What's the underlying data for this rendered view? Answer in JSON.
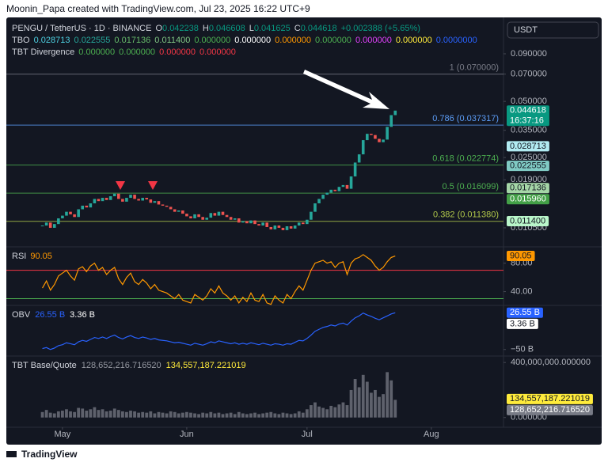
{
  "header": {
    "title": "Moonin_Papa created with TradingView.com, Jul 23, 2025 16:22 UTC+9"
  },
  "footer": {
    "brand": "TradingView"
  },
  "currency_button": "USDT",
  "chart_data": [
    {
      "type": "candlestick",
      "legend": {
        "symbol": "PENGU / TetherUS · 1D · BINANCE",
        "ohlc": [
          {
            "label": "O",
            "value": "0.042238"
          },
          {
            "label": "H",
            "value": "0.046608"
          },
          {
            "label": "L",
            "value": "0.041625"
          },
          {
            "label": "C",
            "value": "0.044618"
          }
        ],
        "change": "+0.002388 (+5.65%)",
        "color": "#089981",
        "rows": [
          {
            "name": "TBO",
            "values": [
              {
                "text": "0.028713",
                "color": "#4dd0e1"
              },
              {
                "text": "0.022555",
                "color": "#26a69a"
              },
              {
                "text": "0.017136",
                "color": "#66bb6a"
              },
              {
                "text": "0.011400",
                "color": "#81c784"
              },
              {
                "text": "0.000000",
                "color": "#4caf50"
              },
              {
                "text": "0.000000",
                "color": "#ffffff"
              },
              {
                "text": "0.000000",
                "color": "#ff9800"
              },
              {
                "text": "0.000000",
                "color": "#4caf50"
              },
              {
                "text": "0.000000",
                "color": "#e040fb"
              },
              {
                "text": "0.000000",
                "color": "#ffeb3b"
              },
              {
                "text": "0.0000000",
                "color": "#2962ff"
              }
            ]
          },
          {
            "name": "TBT Divergence",
            "values": [
              {
                "text": "0.000000",
                "color": "#4caf50"
              },
              {
                "text": "0.000000",
                "color": "#4caf50"
              },
              {
                "text": "0.000000",
                "color": "#f23645"
              },
              {
                "text": "0.000000",
                "color": "#f23645"
              }
            ]
          }
        ]
      },
      "closes": [
        0.0108,
        0.0112,
        0.0105,
        0.011,
        0.0118,
        0.0122,
        0.0128,
        0.0124,
        0.012,
        0.0132,
        0.0138,
        0.0135,
        0.0142,
        0.015,
        0.0146,
        0.0152,
        0.0148,
        0.0155,
        0.016,
        0.015,
        0.0145,
        0.0152,
        0.0158,
        0.015,
        0.0147,
        0.0152,
        0.0149,
        0.0143,
        0.0146,
        0.014,
        0.0138,
        0.0136,
        0.0132,
        0.0128,
        0.013,
        0.0125,
        0.0121,
        0.0118,
        0.0124,
        0.012,
        0.0116,
        0.0119,
        0.0126,
        0.0122,
        0.0128,
        0.0123,
        0.012,
        0.0116,
        0.0118,
        0.0112,
        0.0114,
        0.0111,
        0.0115,
        0.011,
        0.0108,
        0.0112,
        0.0106,
        0.0103,
        0.0108,
        0.0105,
        0.0102,
        0.0107,
        0.0104,
        0.0108,
        0.0112,
        0.011,
        0.0116,
        0.0128,
        0.0142,
        0.015,
        0.0158,
        0.0162,
        0.0168,
        0.0165,
        0.0174,
        0.0178,
        0.017,
        0.0198,
        0.0235,
        0.026,
        0.031,
        0.0335,
        0.033,
        0.0315,
        0.0302,
        0.0312,
        0.0365,
        0.0422,
        0.044618
      ],
      "up_color": "#26a69a",
      "down_color": "#ef5350",
      "xlim": [
        -9,
        115
      ],
      "xticks": [
        {
          "value": 5,
          "label": "May"
        },
        {
          "value": 36,
          "label": "Jun"
        },
        {
          "value": 66,
          "label": "Jul"
        },
        {
          "value": 97,
          "label": "Aug"
        }
      ],
      "log_scale": true,
      "ylim": [
        0.0083,
        0.141
      ],
      "yticks": [
        {
          "value": 0.09,
          "label": "0.090000"
        },
        {
          "value": 0.07,
          "label": "0.070000"
        },
        {
          "value": 0.05,
          "label": "0.050000"
        },
        {
          "value": 0.035,
          "label": "0.035000"
        },
        {
          "value": 0.025,
          "label": "0.025000"
        },
        {
          "value": 0.019,
          "label": "0.019000"
        },
        {
          "value": 0.0105,
          "label": "0.010500"
        }
      ],
      "fib_levels": [
        {
          "value": 0.07,
          "label": "1 (0.070000)",
          "color": "#787b86"
        },
        {
          "value": 0.037317,
          "label": "0.786 (0.037317)",
          "color": "#5b9cf6"
        },
        {
          "value": 0.022774,
          "label": "0.618 (0.022774)",
          "color": "#4caf50"
        },
        {
          "value": 0.016099,
          "label": "0.5 (0.016099)",
          "color": "#4caf50"
        },
        {
          "value": 0.01138,
          "label": "0.382 (0.011380)",
          "color": "#b2c94a"
        }
      ],
      "badges": [
        {
          "value": 0.044618,
          "label": "0.044618",
          "sub": "16:37:16",
          "bg": "#089981",
          "fg": "#ffffff"
        },
        {
          "value": 0.028713,
          "label": "0.028713",
          "bg": "#b2ebf2",
          "fg": "#131722"
        },
        {
          "value": 0.022555,
          "label": "0.022555",
          "bg": "#80cbc4",
          "fg": "#131722"
        },
        {
          "value": 0.017136,
          "label": "0.017136",
          "bg": "#a5d6a7",
          "fg": "#131722"
        },
        {
          "value": 0.01596,
          "label": "0.015960",
          "bg": "#43a047",
          "fg": "#ffffff"
        },
        {
          "value": 0.0114,
          "label": "0.011400",
          "bg": "#b9f6ca",
          "fg": "#131722"
        }
      ]
    },
    {
      "type": "line",
      "title": "RSI",
      "title_value": "90.05",
      "color": "#ff9800",
      "values": [
        45,
        55,
        42,
        50,
        62,
        66,
        70,
        62,
        56,
        72,
        75,
        68,
        76,
        80,
        70,
        74,
        64,
        70,
        74,
        58,
        50,
        60,
        66,
        54,
        50,
        57,
        52,
        44,
        50,
        42,
        40,
        38,
        34,
        30,
        36,
        28,
        26,
        24,
        36,
        32,
        28,
        34,
        44,
        38,
        48,
        38,
        34,
        28,
        34,
        24,
        32,
        26,
        38,
        28,
        26,
        36,
        24,
        22,
        34,
        28,
        24,
        36,
        30,
        40,
        48,
        42,
        56,
        70,
        80,
        82,
        84,
        80,
        82,
        74,
        80,
        82,
        64,
        80,
        86,
        88,
        92,
        88,
        84,
        76,
        70,
        74,
        82,
        88,
        90.05
      ],
      "ylim": [
        20.6,
        102.9
      ],
      "yticks": [
        {
          "value": 80,
          "label": "80.00"
        },
        {
          "value": 40,
          "label": "40.00"
        }
      ],
      "levels": [
        {
          "value": 70,
          "color": "#f23645"
        },
        {
          "value": 30,
          "color": "#4caf50"
        }
      ],
      "badges": [
        {
          "value": 90.05,
          "label": "90.05",
          "bg": "#ff9800",
          "fg": "#131722"
        }
      ]
    },
    {
      "type": "line",
      "title": "OBV",
      "legend_values": [
        {
          "text": "26.55 B",
          "color": "#2962ff"
        },
        {
          "text": "3.36 B",
          "color": "#ffffff"
        }
      ],
      "color": "#2962ff",
      "values": [
        -48,
        -46,
        -50,
        -47,
        -42,
        -40,
        -36,
        -38,
        -40,
        -34,
        -31,
        -33,
        -29,
        -25,
        -27,
        -24,
        -27,
        -23,
        -20,
        -25,
        -28,
        -24,
        -21,
        -25,
        -27,
        -24,
        -26,
        -29,
        -27,
        -30,
        -31,
        -32,
        -34,
        -36,
        -35,
        -37,
        -39,
        -41,
        -37,
        -39,
        -41,
        -38,
        -34,
        -36,
        -32,
        -34,
        -36,
        -38,
        -36,
        -39,
        -37,
        -39,
        -36,
        -38,
        -40,
        -37,
        -39,
        -41,
        -38,
        -39,
        -41,
        -38,
        -39,
        -35,
        -31,
        -32,
        -27,
        -20,
        -12,
        -8,
        -4,
        -2,
        1,
        -1,
        3,
        5,
        1,
        9,
        16,
        20,
        26,
        22,
        19,
        15,
        12,
        16,
        20,
        24,
        26.55
      ],
      "ylim": [
        -63.6,
        41.9
      ],
      "yticks": [
        {
          "value": -50,
          "label": "−50 B"
        }
      ],
      "badges": [
        {
          "value": 26.55,
          "label": "26.55 B",
          "bg": "#2962ff",
          "fg": "#ffffff"
        },
        {
          "value": 3.36,
          "label": "3.36 B",
          "bg": "#ffffff",
          "fg": "#131722"
        }
      ]
    },
    {
      "type": "bar",
      "title": "TBT Base/Quote",
      "legend_values": [
        {
          "text": "128,652,216.716520",
          "color": "#9598a1"
        },
        {
          "text": "134,557,187.221019",
          "color": "#ffeb3b"
        }
      ],
      "color": "#787b86",
      "values": [
        40000000.0,
        55000000.0,
        35000000.0,
        30000000.0,
        45000000.0,
        50000000.0,
        60000000.0,
        45000000.0,
        40000000.0,
        70000000.0,
        65000000.0,
        50000000.0,
        60000000.0,
        75000000.0,
        55000000.0,
        60000000.0,
        45000000.0,
        50000000.0,
        65000000.0,
        55000000.0,
        45000000.0,
        40000000.0,
        50000000.0,
        45000000.0,
        35000000.0,
        40000000.0,
        35000000.0,
        45000000.0,
        30000000.0,
        40000000.0,
        35000000.0,
        30000000.0,
        45000000.0,
        40000000.0,
        30000000.0,
        35000000.0,
        40000000.0,
        35000000.0,
        30000000.0,
        25000000.0,
        35000000.0,
        30000000.0,
        40000000.0,
        30000000.0,
        35000000.0,
        25000000.0,
        30000000.0,
        35000000.0,
        25000000.0,
        40000000.0,
        30000000.0,
        25000000.0,
        30000000.0,
        35000000.0,
        25000000.0,
        30000000.0,
        35000000.0,
        40000000.0,
        30000000.0,
        25000000.0,
        35000000.0,
        30000000.0,
        25000000.0,
        30000000.0,
        45000000.0,
        35000000.0,
        60000000.0,
        90000000.0,
        110000000.0,
        80000000.0,
        70000000.0,
        60000000.0,
        85000000.0,
        75000000.0,
        95000000.0,
        110000000.0,
        90000000.0,
        200000000.0,
        280000000.0,
        220000000.0,
        310000000.0,
        260000000.0,
        180000000.0,
        200000000.0,
        150000000.0,
        170000000.0,
        330000000.0,
        270000000.0,
        128652216.71652
      ],
      "ylim": [
        -70600000,
        447000000
      ],
      "yticks": [
        {
          "value": 400000000,
          "label": "400,000,000.000000"
        },
        {
          "value": 0,
          "label": "0.000000"
        }
      ],
      "badges": [
        {
          "value": 134557187.221019,
          "label": "134,557,187.221019",
          "bg": "#ffeb3b",
          "fg": "#131722"
        },
        {
          "value": 128652216.71652,
          "label": "128,652,216.716520",
          "bg": "#787b86",
          "fg": "#ffffff"
        }
      ]
    }
  ]
}
